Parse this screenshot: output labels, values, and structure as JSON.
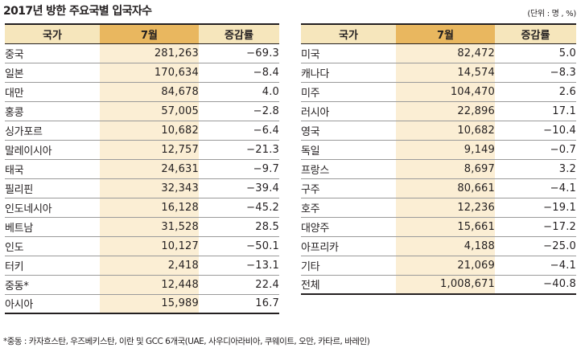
{
  "title": "2017년 방한 주요국별 입국자수",
  "unit_note": "(단위 : 명 , %)",
  "headers": {
    "country": "국가",
    "month": "7월",
    "rate": "증감률"
  },
  "left_rows": [
    {
      "country": "중국",
      "month": "281,263",
      "rate": "−69.3"
    },
    {
      "country": "일본",
      "month": "170,634",
      "rate": "−8.4"
    },
    {
      "country": "대만",
      "month": "84,678",
      "rate": "4.0"
    },
    {
      "country": "홍콩",
      "month": "57,005",
      "rate": "−2.8"
    },
    {
      "country": "싱가포르",
      "month": "10,682",
      "rate": "−6.4"
    },
    {
      "country": "말레이시아",
      "month": "12,757",
      "rate": "−21.3"
    },
    {
      "country": "태국",
      "month": "24,631",
      "rate": "−9.7"
    },
    {
      "country": "필리핀",
      "month": "32,343",
      "rate": "−39.4"
    },
    {
      "country": "인도네시아",
      "month": "16,128",
      "rate": "−45.2"
    },
    {
      "country": "베트남",
      "month": "31,528",
      "rate": "28.5"
    },
    {
      "country": "인도",
      "month": "10,127",
      "rate": "−50.1"
    },
    {
      "country": "터키",
      "month": "2,418",
      "rate": "−13.1"
    },
    {
      "country": "중동*",
      "month": "12,448",
      "rate": "22.4"
    },
    {
      "country": "아시아",
      "month": "15,989",
      "rate": "16.7"
    }
  ],
  "right_rows": [
    {
      "country": "미국",
      "month": "82,472",
      "rate": "5.0"
    },
    {
      "country": "캐나다",
      "month": "14,574",
      "rate": "−8.3"
    },
    {
      "country": "미주",
      "month": "104,470",
      "rate": "2.6"
    },
    {
      "country": "러시아",
      "month": "22,896",
      "rate": "17.1"
    },
    {
      "country": "영국",
      "month": "10,682",
      "rate": "−10.4"
    },
    {
      "country": "독일",
      "month": "9,149",
      "rate": "−0.7"
    },
    {
      "country": "프랑스",
      "month": "8,697",
      "rate": "3.2"
    },
    {
      "country": "구주",
      "month": "80,661",
      "rate": "−4.1"
    },
    {
      "country": "호주",
      "month": "12,236",
      "rate": "−19.1"
    },
    {
      "country": "대양주",
      "month": "15,661",
      "rate": "−17.2"
    },
    {
      "country": "아프리카",
      "month": "4,188",
      "rate": "−25.0"
    },
    {
      "country": "기타",
      "month": "21,069",
      "rate": "−4.1"
    },
    {
      "country": "전체",
      "month": "1,008,671",
      "rate": "−40.8"
    }
  ],
  "footnote": "*중동 : 카자흐스탄, 우즈베키스탄, 이란 및 GCC 6개국(UAE, 사우디아라비아, 쿠웨이트, 오만, 카타르, 바레인)",
  "colors": {
    "header_light": "#f6e6bc",
    "header_accent": "#e9b75f",
    "month_column": "#fbeed4",
    "rule": "#231f20"
  }
}
